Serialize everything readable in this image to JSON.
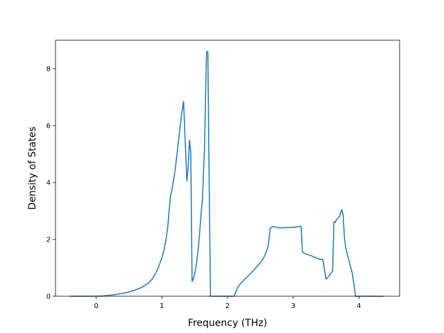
{
  "chart_data": {
    "type": "line",
    "title": "",
    "xlabel": "Frequency (THz)",
    "ylabel": "Density of States",
    "xlim": [
      -0.62,
      4.62
    ],
    "ylim": [
      0,
      9
    ],
    "xticks": [
      0,
      1,
      2,
      3,
      4
    ],
    "yticks": [
      0,
      2,
      4,
      6,
      8
    ],
    "grid": false,
    "line_color": "#1f77b4",
    "series": [
      {
        "x": [
          -0.4,
          -0.2,
          0.0,
          0.1,
          0.2,
          0.3,
          0.4,
          0.5,
          0.6,
          0.7,
          0.8,
          0.85,
          0.9,
          0.95,
          1.0,
          1.03,
          1.06,
          1.09,
          1.11,
          1.13,
          1.15,
          1.2,
          1.25,
          1.3,
          1.33,
          1.36,
          1.38,
          1.4,
          1.42,
          1.44,
          1.46,
          1.48,
          1.5,
          1.53,
          1.56,
          1.59,
          1.62,
          1.65,
          1.68,
          1.69,
          1.7,
          1.72,
          1.74,
          1.76,
          1.8,
          2.0,
          2.1,
          2.15,
          2.2,
          2.3,
          2.4,
          2.5,
          2.55,
          2.58,
          2.6,
          2.62,
          2.65,
          2.7,
          2.8,
          2.9,
          3.0,
          3.05,
          3.1,
          3.12,
          3.14,
          3.2,
          3.3,
          3.4,
          3.45,
          3.5,
          3.52,
          3.55,
          3.6,
          3.62,
          3.64,
          3.66,
          3.7,
          3.74,
          3.76,
          3.78,
          3.8,
          3.85,
          3.9,
          3.95,
          4.0,
          4.05,
          4.2,
          4.37
        ],
        "y": [
          0,
          0,
          0,
          0.01,
          0.03,
          0.06,
          0.1,
          0.15,
          0.22,
          0.32,
          0.47,
          0.6,
          0.78,
          1.03,
          1.35,
          1.6,
          1.95,
          2.45,
          3.0,
          3.5,
          3.7,
          4.4,
          5.4,
          6.4,
          6.85,
          5.2,
          4.05,
          4.5,
          5.5,
          5.05,
          0.52,
          0.62,
          0.78,
          1.2,
          1.8,
          2.7,
          3.5,
          5.3,
          8.6,
          8.6,
          8.58,
          4.0,
          0.0,
          0.0,
          0.0,
          0.0,
          0.0,
          0.3,
          0.45,
          0.68,
          0.92,
          1.18,
          1.35,
          1.5,
          1.62,
          1.78,
          2.4,
          2.45,
          2.4,
          2.42,
          2.42,
          2.44,
          2.45,
          2.45,
          1.55,
          1.48,
          1.4,
          1.3,
          1.3,
          0.6,
          0.65,
          0.72,
          0.9,
          2.62,
          2.6,
          2.7,
          2.78,
          3.05,
          2.85,
          2.05,
          1.7,
          1.25,
          0.8,
          0.0,
          0.0,
          0.0,
          0.0,
          0.0
        ]
      }
    ]
  }
}
